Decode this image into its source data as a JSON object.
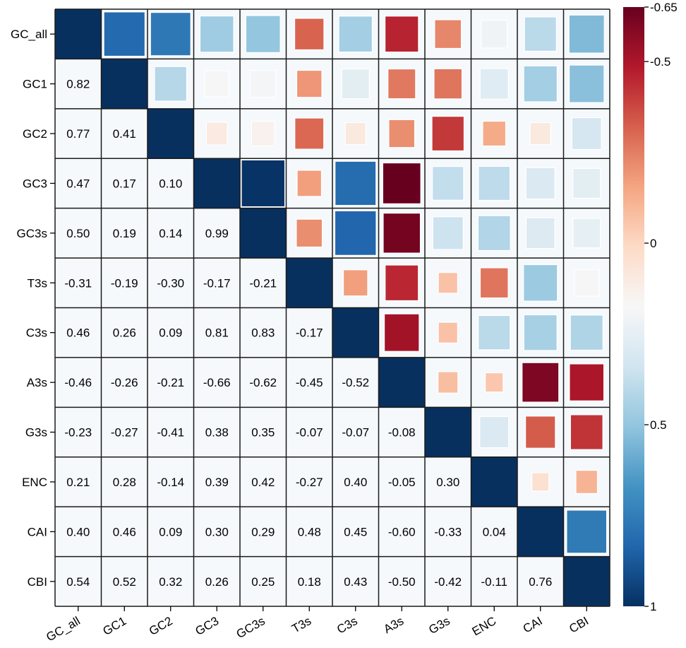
{
  "chart_data": {
    "type": "heatmap",
    "title": "",
    "variables": [
      "GC_all",
      "GC1",
      "GC2",
      "GC3",
      "GC3s",
      "T3s",
      "C3s",
      "A3s",
      "G3s",
      "ENC",
      "CAI",
      "CBI"
    ],
    "lower_triangle_values": [
      [],
      [
        0.82
      ],
      [
        0.77,
        0.41
      ],
      [
        0.47,
        0.17,
        0.1
      ],
      [
        0.5,
        0.19,
        0.14,
        0.99
      ],
      [
        -0.31,
        -0.19,
        -0.3,
        -0.17,
        -0.21
      ],
      [
        0.46,
        0.26,
        0.09,
        0.81,
        0.83,
        -0.17
      ],
      [
        -0.46,
        -0.26,
        -0.21,
        -0.66,
        -0.62,
        -0.45,
        -0.52
      ],
      [
        -0.23,
        -0.27,
        -0.41,
        0.38,
        0.35,
        -0.07,
        -0.07,
        -0.08
      ],
      [
        0.21,
        0.28,
        -0.14,
        0.39,
        0.42,
        -0.27,
        0.4,
        -0.05,
        0.3
      ],
      [
        0.4,
        0.46,
        0.09,
        0.3,
        0.29,
        0.48,
        0.45,
        -0.6,
        -0.33,
        0.04
      ],
      [
        0.54,
        0.52,
        0.32,
        0.26,
        0.25,
        0.18,
        0.43,
        -0.5,
        -0.42,
        -0.11,
        0.76
      ]
    ],
    "diagonal_value": 1,
    "upper_triangle": "squares sized and colored by the symmetric correlation value",
    "lower_triangle": "correlation values printed as text",
    "colorbar": {
      "range": [
        -0.65,
        1
      ],
      "ticks": [
        -0.65,
        -0.5,
        0,
        0.5,
        1
      ],
      "tick_labels": [
        "-0.65",
        "-0.5",
        "0",
        "0.5",
        "1"
      ],
      "colormap": "RdBu (red = negative, blue = positive)",
      "placement": "right",
      "orientation": "vertical, -0.65 at top"
    },
    "xlabel": "",
    "ylabel": "",
    "x_tick_rotation": "rotated ~30 degrees",
    "colors": {
      "cell_background": "#f5f9fc",
      "grid_line": "#1a1a1a",
      "diagonal": "#08305e"
    }
  }
}
